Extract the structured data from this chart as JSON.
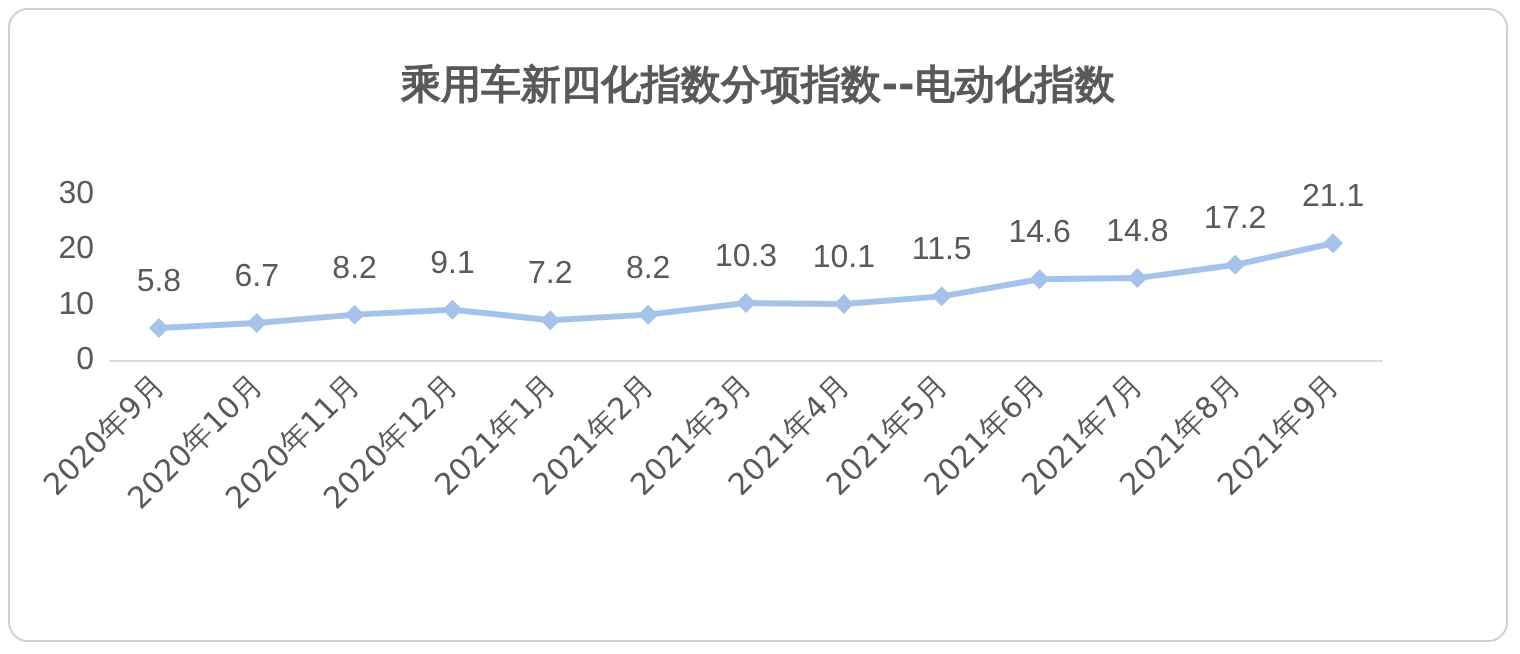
{
  "chart_data": {
    "type": "line",
    "title": "乘用车新四化指数分项指数--电动化指数",
    "categories": [
      "2020年9月",
      "2020年10月",
      "2020年11月",
      "2020年12月",
      "2021年1月",
      "2021年2月",
      "2021年3月",
      "2021年4月",
      "2021年5月",
      "2021年6月",
      "2021年7月",
      "2021年8月",
      "2021年9月"
    ],
    "series": [
      {
        "color": "#a4c2ea",
        "values": [
          5.8,
          6.7,
          8.2,
          9.1,
          7.2,
          8.2,
          10.3,
          10.1,
          11.5,
          14.6,
          14.8,
          17.2,
          21.1
        ]
      }
    ],
    "ylim": [
      0,
      30
    ],
    "yticks": [
      0,
      10,
      20,
      30
    ],
    "grid": false,
    "marker": "diamond",
    "line_style": "solid",
    "data_labels": true
  }
}
